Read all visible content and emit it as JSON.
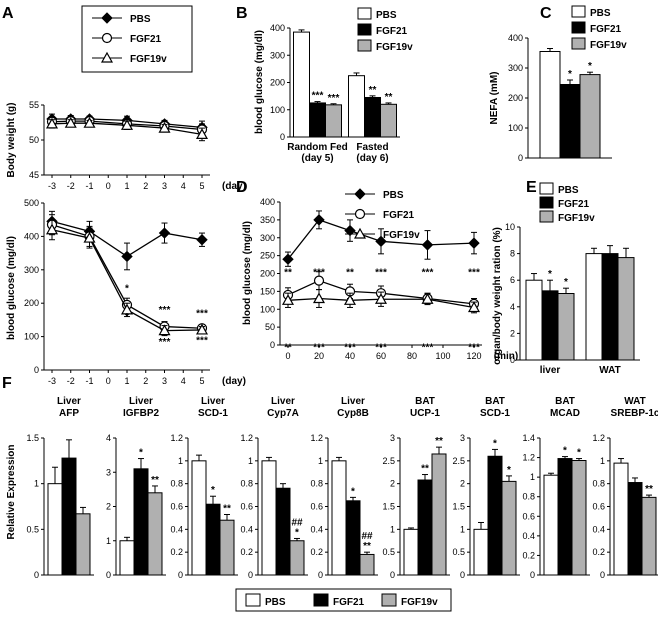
{
  "panel_letters": [
    "A",
    "B",
    "C",
    "D",
    "E",
    "F"
  ],
  "groups": [
    {
      "name": "PBS",
      "color": "#ffffff"
    },
    {
      "name": "FGF21",
      "color": "#000000"
    },
    {
      "name": "FGF19v",
      "color": "#b0b0b0"
    }
  ],
  "chart_data": [
    {
      "panel": "A-top",
      "type": "line",
      "ylabel": "Body weight (g)",
      "xunit": "(day)",
      "x": [
        -3,
        -2,
        -1,
        0,
        1,
        2,
        3,
        4,
        5
      ],
      "ylim": [
        45,
        55
      ],
      "yticks": [
        45,
        50,
        55
      ],
      "series": [
        {
          "name": "PBS",
          "marker": "diamond",
          "values": [
            53,
            53,
            53,
            null,
            52.8,
            null,
            52.3,
            null,
            51.8
          ],
          "err": [
            0.7,
            0.5,
            0.4,
            null,
            0.6,
            null,
            0.5,
            null,
            0.9
          ]
        },
        {
          "name": "FGF21",
          "marker": "circle",
          "values": [
            52.6,
            52.7,
            52.7,
            null,
            52.3,
            null,
            52.0,
            null,
            51.5
          ],
          "err": [
            0.6,
            0.5,
            0.4,
            null,
            0.6,
            null,
            0.5,
            null,
            0.8
          ]
        },
        {
          "name": "FGF19v",
          "marker": "triangle",
          "values": [
            52.3,
            52.4,
            52.4,
            null,
            52.1,
            null,
            51.7,
            null,
            50.8
          ],
          "err": [
            0.6,
            0.5,
            0.4,
            null,
            0.6,
            null,
            0.5,
            null,
            0.9
          ]
        }
      ]
    },
    {
      "panel": "A-bottom",
      "type": "line",
      "ylabel": "blood glucose (mg/dl)",
      "xunit": "(day)",
      "x": [
        -3,
        -2,
        -1,
        0,
        1,
        2,
        3,
        4,
        5
      ],
      "ylim": [
        0,
        500
      ],
      "yticks": [
        0,
        100,
        200,
        300,
        400,
        500
      ],
      "series": [
        {
          "name": "PBS",
          "marker": "diamond",
          "values": [
            445,
            null,
            415,
            null,
            340,
            null,
            410,
            null,
            390
          ],
          "err": [
            30,
            null,
            30,
            null,
            40,
            null,
            30,
            null,
            20
          ]
        },
        {
          "name": "FGF21",
          "marker": "circle",
          "values": [
            435,
            null,
            400,
            null,
            195,
            null,
            130,
            null,
            125
          ],
          "err": [
            30,
            null,
            30,
            null,
            20,
            null,
            15,
            null,
            10
          ]
        },
        {
          "name": "FGF19v",
          "marker": "triangle",
          "values": [
            420,
            null,
            395,
            null,
            180,
            null,
            118,
            null,
            120
          ],
          "err": [
            30,
            null,
            30,
            null,
            20,
            null,
            15,
            null,
            10
          ]
        }
      ],
      "annotations": [
        {
          "x": 1,
          "y": 235,
          "text": "*"
        },
        {
          "x": 1,
          "y": 150,
          "text": "*"
        },
        {
          "x": 3,
          "y": 170,
          "text": "***"
        },
        {
          "x": 3,
          "y": 75,
          "text": "***"
        },
        {
          "x": 5,
          "y": 160,
          "text": "***"
        },
        {
          "x": 5,
          "y": 80,
          "text": "***"
        }
      ]
    },
    {
      "panel": "B",
      "type": "bar",
      "ylabel": "blood glucose (mg/dl)",
      "categories": [
        "Random Fed",
        "Fasted"
      ],
      "sublabels": [
        "(day 5)",
        "(day 6)"
      ],
      "ylim": [
        0,
        400
      ],
      "yticks": [
        0,
        100,
        200,
        300,
        400
      ],
      "series": [
        {
          "name": "PBS",
          "values": [
            385,
            225
          ],
          "err": [
            8,
            10
          ]
        },
        {
          "name": "FGF21",
          "values": [
            125,
            145
          ],
          "err": [
            5,
            6
          ]
        },
        {
          "name": "FGF19v",
          "values": [
            118,
            120
          ],
          "err": [
            4,
            5
          ]
        }
      ],
      "stars": [
        [
          null,
          "***",
          "***"
        ],
        [
          null,
          "**",
          "**"
        ]
      ]
    },
    {
      "panel": "C",
      "type": "bar",
      "ylabel": "NEFA (mM)",
      "categories": [
        ""
      ],
      "ylim": [
        0,
        400
      ],
      "yticks": [
        0,
        100,
        200,
        300,
        400
      ],
      "series": [
        {
          "name": "PBS",
          "values": [
            355
          ],
          "err": [
            10
          ]
        },
        {
          "name": "FGF21",
          "values": [
            245
          ],
          "err": [
            15
          ]
        },
        {
          "name": "FGF19v",
          "values": [
            278
          ],
          "err": [
            8
          ]
        }
      ],
      "stars": [
        [
          null,
          "*",
          "*"
        ]
      ]
    },
    {
      "panel": "D",
      "type": "line",
      "ylabel": "blood glucose (mg/dl)",
      "xunit": "(min)",
      "x": [
        0,
        20,
        40,
        60,
        90,
        120
      ],
      "ylim": [
        0,
        400
      ],
      "yticks": [
        0,
        50,
        100,
        150,
        200,
        250,
        300,
        350,
        400
      ],
      "xticks": [
        0,
        20,
        40,
        60,
        80,
        100,
        120
      ],
      "series": [
        {
          "name": "PBS",
          "marker": "diamond",
          "values": [
            240,
            350,
            320,
            290,
            280,
            285
          ],
          "err": [
            20,
            25,
            30,
            35,
            40,
            30
          ]
        },
        {
          "name": "FGF21",
          "marker": "circle",
          "values": [
            140,
            180,
            150,
            145,
            130,
            115
          ],
          "err": [
            20,
            25,
            20,
            20,
            15,
            15
          ]
        },
        {
          "name": "FGF19v",
          "marker": "triangle",
          "values": [
            125,
            130,
            125,
            128,
            128,
            105
          ],
          "err": [
            20,
            25,
            20,
            20,
            15,
            15
          ]
        }
      ],
      "annotations_top": [
        "**",
        "***",
        "**",
        "***",
        "***",
        "***"
      ],
      "annotations_bottom": [
        "**",
        "***",
        "***",
        "***",
        "***",
        "***"
      ]
    },
    {
      "panel": "E",
      "type": "bar",
      "ylabel": "organ/body weight ration (%)",
      "categories": [
        "liver",
        "WAT"
      ],
      "ylim": [
        0,
        10
      ],
      "yticks": [
        0,
        2,
        4,
        6,
        8,
        10
      ],
      "series": [
        {
          "name": "PBS",
          "values": [
            6.0,
            8.0
          ],
          "err": [
            0.5,
            0.4
          ]
        },
        {
          "name": "FGF21",
          "values": [
            5.2,
            8.0
          ],
          "err": [
            0.8,
            0.6
          ]
        },
        {
          "name": "FGF19v",
          "values": [
            5.0,
            7.7
          ],
          "err": [
            0.4,
            0.7
          ]
        }
      ],
      "stars": [
        [
          null,
          "*",
          "*"
        ],
        [
          null,
          null,
          null
        ]
      ]
    },
    {
      "panel": "F",
      "type": "bar",
      "ylabel": "Relative Expression",
      "subplots": [
        {
          "title1": "Liver",
          "title2": "AFP",
          "ymax": 1.5,
          "yticks": [
            0,
            0.5,
            1,
            1.5
          ],
          "ytick_labels": [
            "0",
            "0.5",
            "1",
            "1.5"
          ],
          "values": [
            1.0,
            1.28,
            0.67
          ],
          "err": [
            0.18,
            0.2,
            0.07
          ],
          "stars": [
            null,
            null,
            null
          ]
        },
        {
          "title1": "Liver",
          "title2": "IGFBP2",
          "ymax": 4,
          "yticks": [
            0,
            1,
            2,
            3,
            4
          ],
          "ytick_labels": [
            "0",
            "1",
            "2",
            "3",
            "4"
          ],
          "values": [
            1.0,
            3.1,
            2.4
          ],
          "err": [
            0.1,
            0.3,
            0.2
          ],
          "stars": [
            null,
            "*",
            "**"
          ]
        },
        {
          "title1": "Liver",
          "title2": "SCD-1",
          "ymax": 1.2,
          "yticks": [
            0,
            0.2,
            0.4,
            0.6,
            0.8,
            1,
            1.2
          ],
          "ytick_labels": [
            "0",
            "0.2",
            "0.4",
            "0.6",
            "0.8",
            "1",
            "1.2"
          ],
          "values": [
            1.0,
            0.62,
            0.48
          ],
          "err": [
            0.05,
            0.07,
            0.05
          ],
          "stars": [
            null,
            "*",
            "**"
          ]
        },
        {
          "title1": "Liver",
          "title2": "Cyp7A",
          "ymax": 1.2,
          "yticks": [
            0,
            0.2,
            0.4,
            0.6,
            0.8,
            1,
            1.2
          ],
          "ytick_labels": [
            "0",
            "0.2",
            "0.4",
            "0.6",
            "0.8",
            "1",
            "1.2"
          ],
          "values": [
            1.0,
            0.76,
            0.3
          ],
          "err": [
            0.03,
            0.04,
            0.02
          ],
          "stars": [
            null,
            null,
            "##\n*"
          ]
        },
        {
          "title1": "Liver",
          "title2": "Cyp8B",
          "ymax": 1.2,
          "yticks": [
            0,
            0.2,
            0.4,
            0.6,
            0.8,
            1,
            1.2
          ],
          "ytick_labels": [
            "0",
            "0.2",
            "0.4",
            "0.6",
            "0.8",
            "1",
            "1.2"
          ],
          "values": [
            1.0,
            0.65,
            0.18
          ],
          "err": [
            0.03,
            0.03,
            0.02
          ],
          "stars": [
            null,
            "*",
            "##\n**"
          ]
        },
        {
          "title1": "BAT",
          "title2": "UCP-1",
          "ymax": 3,
          "yticks": [
            0,
            0.5,
            1,
            1.5,
            2,
            2.5,
            3
          ],
          "ytick_labels": [
            "0",
            "0.5",
            "1",
            "1.5",
            "2",
            "2.5",
            "3"
          ],
          "values": [
            1.0,
            2.08,
            2.65
          ],
          "err": [
            0.03,
            0.12,
            0.15
          ],
          "stars": [
            null,
            "**",
            "**"
          ]
        },
        {
          "title1": "BAT",
          "title2": "SCD-1",
          "ymax": 3,
          "yticks": [
            0,
            0.5,
            1,
            1.5,
            2,
            2.5,
            3
          ],
          "ytick_labels": [
            "0",
            "0.5",
            "1",
            "1.5",
            "2",
            "2.5",
            "3"
          ],
          "values": [
            1.0,
            2.6,
            2.05
          ],
          "err": [
            0.15,
            0.15,
            0.12
          ],
          "stars": [
            null,
            "*",
            "*"
          ]
        },
        {
          "title1": "BAT",
          "title2": "MCAD",
          "ymax": 1.4,
          "yticks": [
            0,
            0.2,
            0.4,
            0.6,
            0.8,
            1,
            1.2,
            1.4
          ],
          "ytick_labels": [
            "0",
            "0.2",
            "0.4",
            "0.6",
            "0.8",
            "1",
            "1.2",
            "1.4"
          ],
          "values": [
            1.02,
            1.19,
            1.17
          ],
          "err": [
            0.02,
            0.02,
            0.02
          ],
          "stars": [
            null,
            "*",
            "*"
          ]
        },
        {
          "title1": "WAT",
          "title2": "SREBP-1c",
          "ymax": 1.2,
          "yticks": [
            0,
            0.2,
            0.4,
            0.6,
            0.8,
            1,
            1.2
          ],
          "ytick_labels": [
            "0",
            "0.2",
            "0.4",
            "0.6",
            "0.8",
            "1",
            "1.2"
          ],
          "values": [
            0.98,
            0.81,
            0.68
          ],
          "err": [
            0.04,
            0.04,
            0.02
          ],
          "stars": [
            null,
            null,
            "**"
          ]
        }
      ]
    }
  ]
}
